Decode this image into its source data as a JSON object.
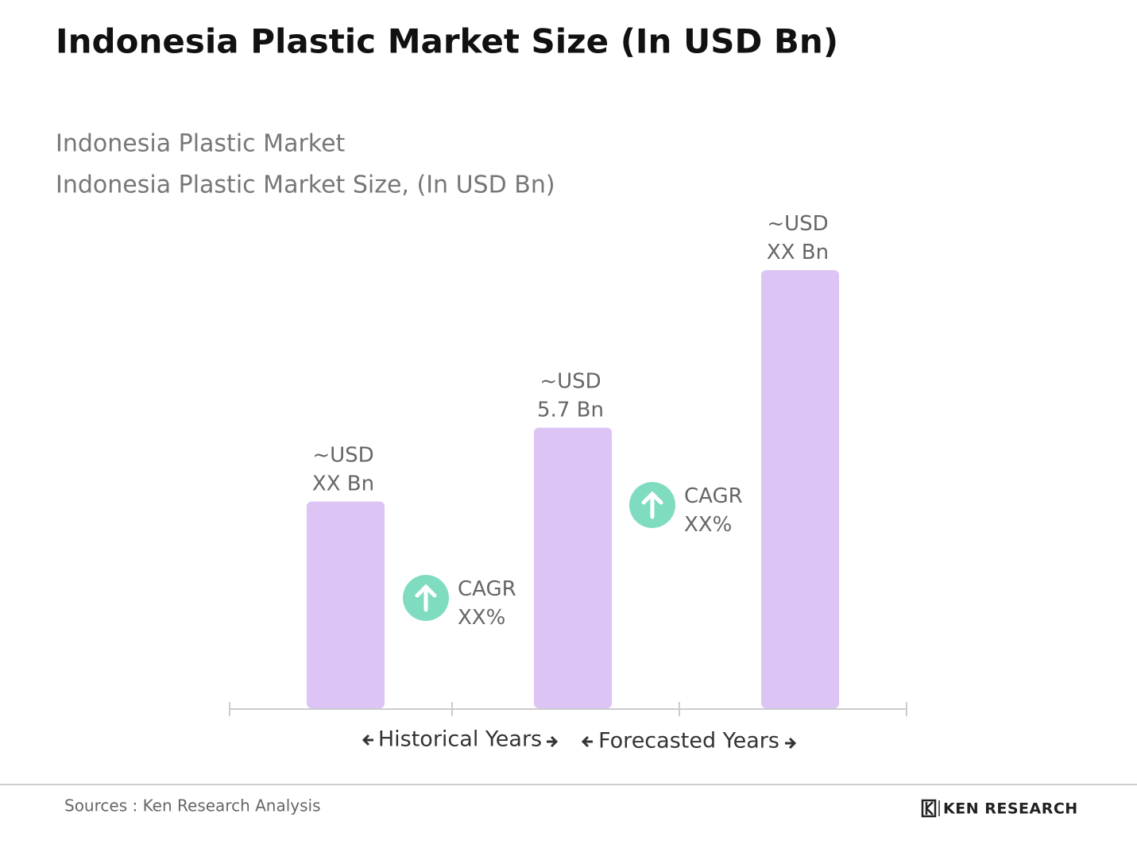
{
  "chart_data": {
    "type": "bar",
    "title": "Indonesia Plastic Market Size (In USD Bn)",
    "subtitle": [
      "Indonesia Plastic Market",
      "Indonesia Plastic Market Size, (In USD Bn)"
    ],
    "categories": [
      null,
      null,
      null
    ],
    "values": [
      4.2,
      5.7,
      8.9
    ],
    "value_labels": [
      "~USD\nXX Bn",
      "~USD\n5.7 Bn",
      "~USD\nXX Bn"
    ],
    "color": "#dcc4f5",
    "annotations": [
      "CAGR\nXX%",
      "CAGR\nXX%"
    ],
    "annotation_color": "#7fdcc0",
    "x_labels": [
      "Historical Years",
      "Forecasted Years"
    ],
    "source": "Sources : Ken Research Analysis",
    "logo": "KEN RESEARCH"
  }
}
